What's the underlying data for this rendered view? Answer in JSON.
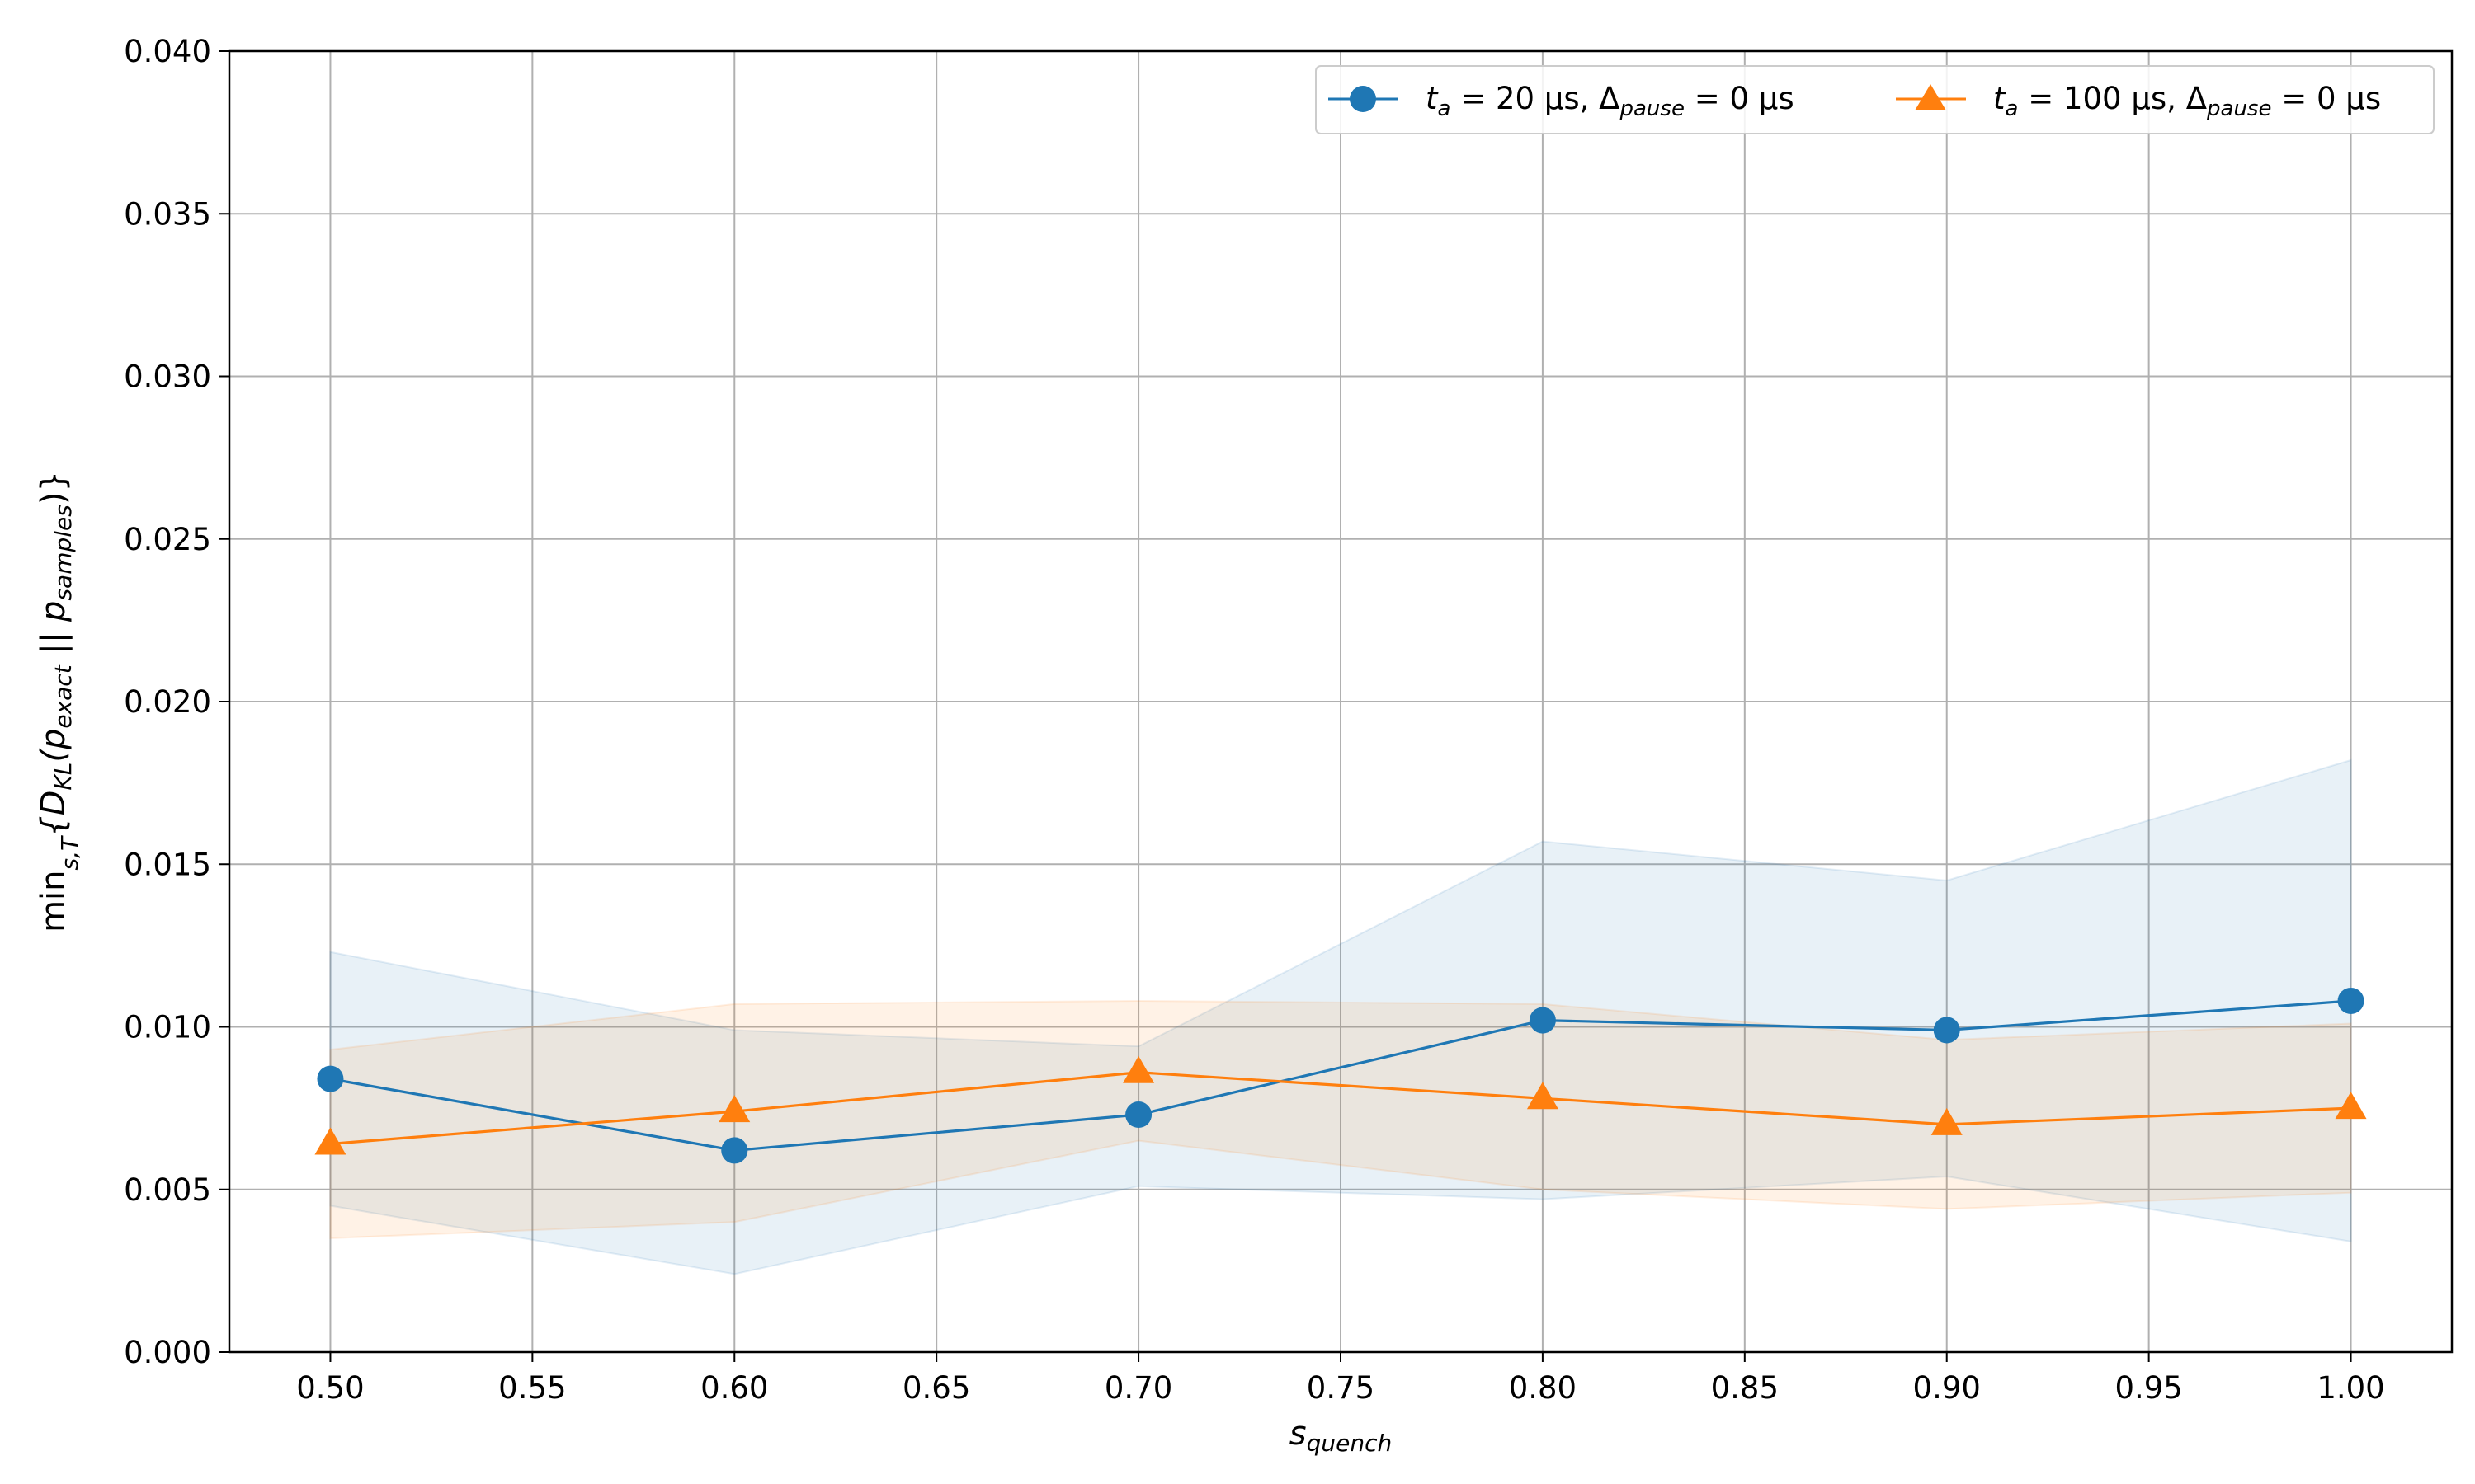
{
  "chart_data": {
    "type": "line",
    "xlabel": {
      "base": "s",
      "sub": "quench"
    },
    "ylabel": {
      "prefix": "min",
      "prefix_sub": "s,T",
      "body": "{D",
      "body_sub": "KL",
      "mid": "(p",
      "mid_sub": "exact",
      "sep": " || p",
      "sep_sub": "samples",
      "end": ")}"
    },
    "xlim": [
      0.475,
      1.025
    ],
    "ylim": [
      0.0,
      0.04
    ],
    "xticks": [
      "0.50",
      "0.55",
      "0.60",
      "0.65",
      "0.70",
      "0.75",
      "0.80",
      "0.85",
      "0.90",
      "0.95",
      "1.00"
    ],
    "yticks": [
      "0.000",
      "0.005",
      "0.010",
      "0.015",
      "0.020",
      "0.025",
      "0.030",
      "0.035",
      "0.040"
    ],
    "grid": true,
    "legend_position": "top-right",
    "series": [
      {
        "label": {
          "t_base": "t",
          "t_sub": "a",
          "eq1": " = 20 µs, Δ",
          "d_sub": "pause",
          "eq2": " = 0 µs"
        },
        "color": "#1f77b4",
        "marker": "circle",
        "x": [
          0.5,
          0.6,
          0.7,
          0.8,
          0.9,
          1.0
        ],
        "y": [
          0.0084,
          0.0062,
          0.0073,
          0.0102,
          0.0099,
          0.0108
        ],
        "band_lower": [
          0.0045,
          0.0024,
          0.0051,
          0.0047,
          0.0054,
          0.0034
        ],
        "band_upper": [
          0.0123,
          0.0099,
          0.0094,
          0.0157,
          0.0145,
          0.0182
        ]
      },
      {
        "label": {
          "t_base": "t",
          "t_sub": "a",
          "eq1": " = 100 µs, Δ",
          "d_sub": "pause",
          "eq2": " = 0 µs"
        },
        "color": "#ff7f0e",
        "marker": "triangle",
        "x": [
          0.5,
          0.6,
          0.7,
          0.8,
          0.9,
          1.0
        ],
        "y": [
          0.0064,
          0.0074,
          0.0086,
          0.0078,
          0.007,
          0.0075
        ],
        "band_lower": [
          0.0035,
          0.004,
          0.0065,
          0.005,
          0.0044,
          0.0049
        ],
        "band_upper": [
          0.0093,
          0.0107,
          0.0108,
          0.0107,
          0.0096,
          0.0101
        ]
      }
    ]
  }
}
